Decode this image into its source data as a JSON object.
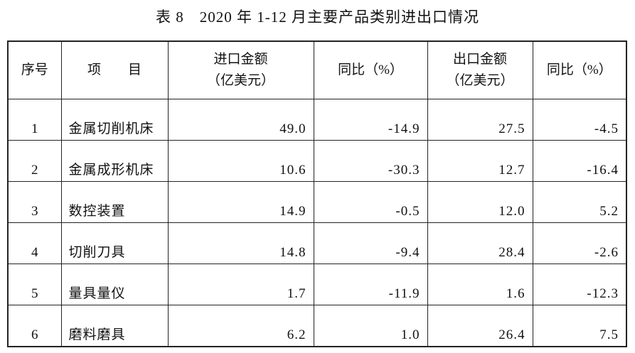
{
  "title": "表 8　2020 年 1-12 月主要产品类别进出口情况",
  "table": {
    "header": [
      [
        "序号"
      ],
      [
        "项　　目"
      ],
      [
        "进口金额",
        "（亿美元）"
      ],
      [
        "同比（%）"
      ],
      [
        "出口金额",
        "（亿美元）"
      ],
      [
        "同比（%）"
      ]
    ],
    "rows": [
      [
        "1",
        "金属切削机床",
        "49.0",
        "-14.9",
        "27.5",
        "-4.5"
      ],
      [
        "2",
        "金属成形机床",
        "10.6",
        "-30.3",
        "12.7",
        "-16.4"
      ],
      [
        "3",
        "数控装置",
        "14.9",
        "-0.5",
        "12.0",
        "5.2"
      ],
      [
        "4",
        "切削刀具",
        "14.8",
        "-9.4",
        "28.4",
        "-2.6"
      ],
      [
        "5",
        "量具量仪",
        "1.7",
        "-11.9",
        "1.6",
        "-12.3"
      ],
      [
        "6",
        "磨料磨具",
        "6.2",
        "1.0",
        "26.4",
        "7.5"
      ]
    ]
  }
}
